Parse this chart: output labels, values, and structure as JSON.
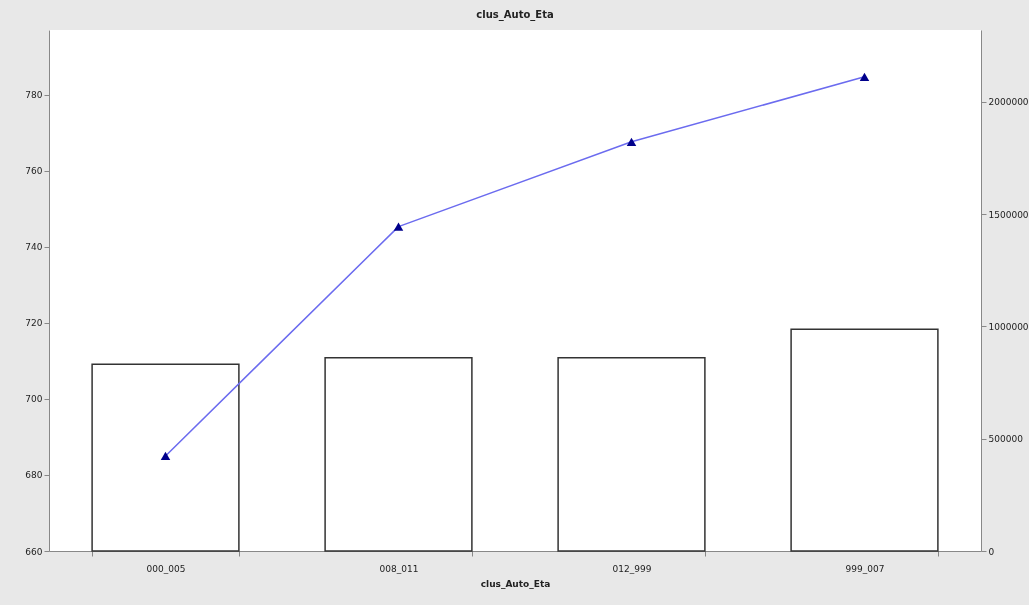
{
  "chart_data": {
    "type": "bar",
    "title": "clus_Auto_Eta",
    "xlabel": "clus_Auto_Eta",
    "categories": [
      "000_005",
      "008_011",
      "012_999",
      "999_007"
    ],
    "series": [
      {
        "axis": "y2",
        "color": "#ffffff",
        "values": [
          832000,
          860000,
          860000,
          987000
        ]
      },
      {
        "type": "line",
        "color": "#6b6bef",
        "values": [
          685.0,
          745.3,
          767.6,
          784.7
        ]
      }
    ],
    "marker": "triangle",
    "ylim": [
      660,
      797
    ],
    "yticks": [
      660,
      680,
      700,
      720,
      740,
      760,
      780
    ],
    "y2lim": [
      0,
      2320000
    ],
    "y2ticks": [
      0,
      500000,
      1000000,
      1500000,
      2000000
    ],
    "grid": false
  }
}
